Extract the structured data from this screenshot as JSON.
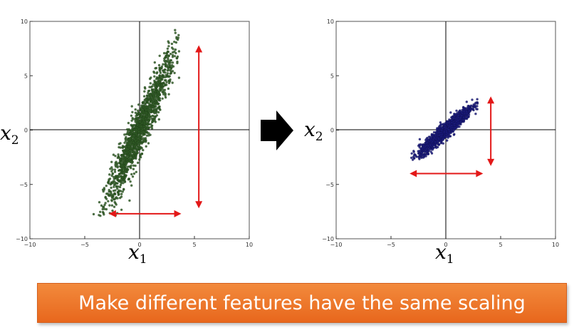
{
  "chart_data": [
    {
      "type": "scatter",
      "title": "",
      "xlabel": "x1",
      "ylabel": "x2",
      "xlim": [
        -10,
        10
      ],
      "ylim": [
        -10,
        10
      ],
      "xticks": [
        "−10",
        "−5",
        "0",
        "5",
        "10"
      ],
      "yticks": [
        "10",
        "5",
        "0",
        "−5",
        "−10"
      ],
      "grid": false,
      "point_color": "#2f5a25",
      "series": [
        {
          "correlated_cloud": {
            "x_mean": 0,
            "y_mean": 0,
            "x_std": 1.6,
            "y_std": 3.6,
            "correlation": 0.95,
            "points": 1500,
            "x_range": [
              -4.8,
              3.6
            ],
            "y_range": [
              -7.9,
              9.2
            ]
          }
        }
      ],
      "arrows": [
        {
          "orientation": "vertical",
          "x": 5.4,
          "from": -7.2,
          "to": 7.8,
          "color": "#e31818"
        },
        {
          "orientation": "horizontal",
          "y": -7.7,
          "from": -2.8,
          "to": 3.8,
          "color": "#e31818"
        }
      ]
    },
    {
      "type": "scatter",
      "title": "",
      "xlabel": "x1",
      "ylabel": "x2",
      "xlim": [
        -10,
        10
      ],
      "ylim": [
        -10,
        10
      ],
      "xticks": [
        "−10",
        "−5",
        "0",
        "5",
        "10"
      ],
      "yticks": [
        "10",
        "5",
        "0",
        "−5",
        "−10"
      ],
      "grid": false,
      "point_color": "#1a1a7a",
      "series": [
        {
          "correlated_cloud": {
            "x_mean": 0,
            "y_mean": 0,
            "x_std": 1.2,
            "y_std": 1.1,
            "correlation": 0.95,
            "points": 1500,
            "x_range": [
              -3.4,
              2.9
            ],
            "y_range": [
              -3.2,
              3.5
            ]
          }
        }
      ],
      "arrows": [
        {
          "orientation": "vertical",
          "x": 4.1,
          "from": -3.3,
          "to": 3.1,
          "color": "#e31818"
        },
        {
          "orientation": "horizontal",
          "y": -4.0,
          "from": -3.3,
          "to": 3.4,
          "color": "#e31818"
        }
      ]
    }
  ],
  "transition_arrow": {
    "color": "#000000",
    "icon": "right-arrow-icon"
  },
  "banner": {
    "text": "Make different features have the same scaling",
    "color": "#ef7a2e"
  },
  "axis_labels": {
    "x": "x",
    "x_sub": "1",
    "y": "x",
    "y_sub": "2"
  }
}
